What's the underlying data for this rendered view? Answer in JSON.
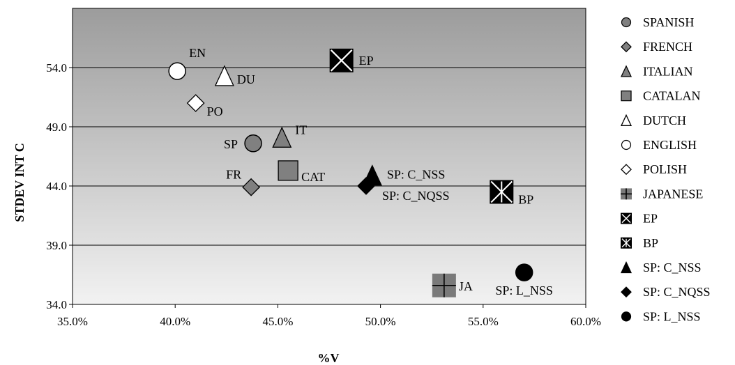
{
  "chart_data": {
    "type": "scatter",
    "xlabel": "%V",
    "ylabel": "STDEV INT C",
    "xlim": [
      0.35,
      0.6
    ],
    "ylim": [
      34.0,
      59.0
    ],
    "x_ticks": [
      0.35,
      0.4,
      0.45,
      0.5,
      0.55,
      0.6
    ],
    "x_tick_labels": [
      "35.0%",
      "40.0%",
      "45.0%",
      "50.0%",
      "55.0%",
      "60.0%"
    ],
    "y_ticks": [
      34.0,
      39.0,
      44.0,
      49.0,
      54.0
    ],
    "y_tick_labels": [
      "34.0",
      "39.0",
      "44.0",
      "49.0",
      "54.0"
    ],
    "grid": "horizontal",
    "legend_position": "right",
    "series": [
      {
        "name": "SPANISH",
        "marker": "circle",
        "color": "#808080",
        "x": 0.438,
        "y": 47.6,
        "label": "SP"
      },
      {
        "name": "FRENCH",
        "marker": "diamond",
        "color": "#808080",
        "x": 0.437,
        "y": 43.9,
        "label": "FR"
      },
      {
        "name": "ITALIAN",
        "marker": "triangle",
        "color": "#808080",
        "x": 0.452,
        "y": 48.1,
        "label": "IT"
      },
      {
        "name": "CATALAN",
        "marker": "square",
        "color": "#808080",
        "x": 0.455,
        "y": 45.3,
        "label": "CAT"
      },
      {
        "name": "DUTCH",
        "marker": "triangle",
        "color": "#ffffff",
        "x": 0.424,
        "y": 53.3,
        "label": "DU"
      },
      {
        "name": "ENGLISH",
        "marker": "circle",
        "color": "#ffffff",
        "x": 0.401,
        "y": 53.7,
        "label": "EN"
      },
      {
        "name": "POLISH",
        "marker": "diamond",
        "color": "#ffffff",
        "x": 0.41,
        "y": 51.0,
        "label": "PO"
      },
      {
        "name": "JAPANESE",
        "marker": "plus-box",
        "color": "#808080",
        "x": 0.531,
        "y": 35.6,
        "label": "JA"
      },
      {
        "name": "EP",
        "marker": "x-box",
        "color": "#000000",
        "x": 0.481,
        "y": 54.6,
        "label": "EP"
      },
      {
        "name": "BP",
        "marker": "star-box",
        "color": "#000000",
        "x": 0.559,
        "y": 43.5,
        "label": "BP"
      },
      {
        "name": "SP: C_NSS",
        "marker": "triangle",
        "color": "#000000",
        "x": 0.496,
        "y": 44.9,
        "label": "SP: C_NSS"
      },
      {
        "name": "SP: C_NQSS",
        "marker": "diamond",
        "color": "#000000",
        "x": 0.493,
        "y": 44.0,
        "label": "SP: C_NQSS"
      },
      {
        "name": "SP: L_NSS",
        "marker": "circle",
        "color": "#000000",
        "x": 0.57,
        "y": 36.7,
        "label": "SP: L_NSS"
      }
    ]
  }
}
